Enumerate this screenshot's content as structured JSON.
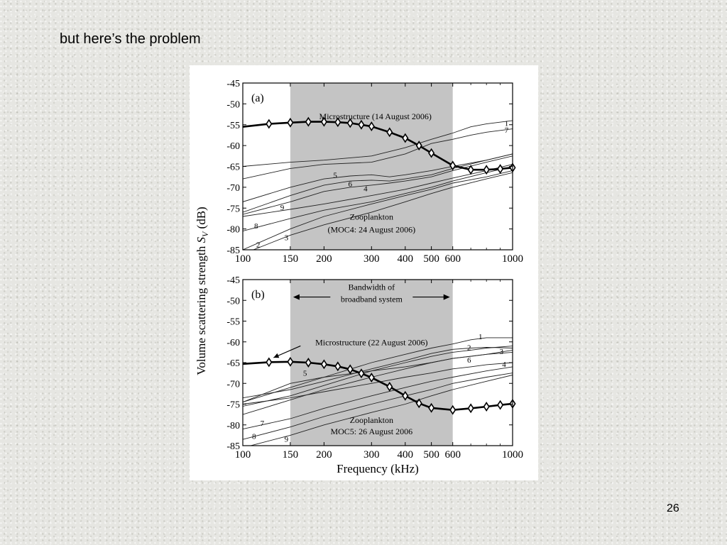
{
  "slide": {
    "title": "but here’s the problem",
    "page_number": "26"
  },
  "chart_data": [
    {
      "type": "line",
      "panel": "(a)",
      "xscale": "log",
      "xlim": [
        100,
        1000
      ],
      "ylim": [
        -85,
        -45
      ],
      "yticks": [
        -45,
        -50,
        -55,
        -60,
        -65,
        -70,
        -75,
        -80,
        -85
      ],
      "xtick_values": [
        100,
        150,
        200,
        300,
        400,
        500,
        600,
        1000
      ],
      "xtick_labels": [
        "100",
        "150",
        "200",
        "300",
        "400",
        "500",
        "600",
        "1000"
      ],
      "shaded_band": [
        150,
        600
      ],
      "annotations": [
        {
          "text": "Microstructure (14 August 2006)",
          "x": 310,
          "y": -53.7
        },
        {
          "text": "Zooplankton",
          "x": 300,
          "y": -77.8
        },
        {
          "text": "(MOC4: 24 August 2006)",
          "x": 300,
          "y": -80.8
        }
      ],
      "microstructure": {
        "x": [
          100,
          125,
          150,
          175,
          200,
          225,
          250,
          275,
          300,
          350,
          400,
          450,
          500,
          600,
          700,
          800,
          900,
          1000
        ],
        "y": [
          -55.5,
          -54.8,
          -54.5,
          -54.3,
          -54.3,
          -54.4,
          -54.6,
          -55.0,
          -55.4,
          -56.8,
          -58.2,
          -60.0,
          -61.8,
          -64.8,
          -65.8,
          -65.8,
          -65.6,
          -65.3
        ]
      },
      "zooplankton": [
        {
          "label": "1",
          "label_at": [
            950,
            -54.6
          ],
          "x": [
            100,
            150,
            200,
            300,
            400,
            500,
            600,
            700,
            800,
            1000
          ],
          "y": [
            -65,
            -64,
            -63.5,
            -62.5,
            -60.5,
            -58.5,
            -57,
            -55.5,
            -54.8,
            -54
          ]
        },
        {
          "label": "7",
          "label_at": [
            950,
            -56.2
          ],
          "x": [
            100,
            150,
            200,
            300,
            400,
            500,
            600,
            700,
            800,
            1000
          ],
          "y": [
            -68,
            -65.5,
            -64.5,
            -64,
            -62,
            -59.5,
            -58.5,
            -57.5,
            -56.8,
            -56
          ]
        },
        {
          "label": "5",
          "label_at": [
            220,
            -67
          ],
          "x": [
            100,
            150,
            200,
            250,
            300,
            350,
            400,
            500,
            600,
            800,
            1000
          ],
          "y": [
            -73.5,
            -70,
            -68,
            -67.3,
            -67,
            -67.5,
            -67,
            -66,
            -65,
            -63.5,
            -62
          ]
        },
        {
          "label": "6",
          "label_at": [
            250,
            -69.2
          ],
          "x": [
            100,
            150,
            200,
            250,
            300,
            350,
            400,
            500,
            600,
            800,
            1000
          ],
          "y": [
            -76,
            -72,
            -69.5,
            -68.5,
            -68.3,
            -68.5,
            -68,
            -67,
            -65.5,
            -63.5,
            -62
          ]
        },
        {
          "label": "4",
          "label_at": [
            285,
            -70.3
          ],
          "x": [
            100,
            150,
            200,
            250,
            300,
            350,
            400,
            500,
            600,
            800,
            1000
          ],
          "y": [
            -76.5,
            -73.5,
            -71,
            -70,
            -69.5,
            -69,
            -68.5,
            -67.5,
            -66,
            -64,
            -62.5
          ]
        },
        {
          "label": "9",
          "label_at": [
            140,
            -74.8
          ],
          "x": [
            100,
            150,
            200,
            300,
            400,
            500,
            600,
            800,
            1000
          ],
          "y": [
            -77,
            -75.3,
            -74,
            -72,
            -70.5,
            -69,
            -67.8,
            -66,
            -64.5
          ]
        },
        {
          "label": "8",
          "label_at": [
            112,
            -79.2
          ],
          "x": [
            100,
            150,
            200,
            300,
            400,
            500,
            600,
            800,
            1000
          ],
          "y": [
            -80.5,
            -77.5,
            -75.5,
            -73.5,
            -71.5,
            -70,
            -68.5,
            -66.5,
            -65
          ]
        },
        {
          "label": "3",
          "label_at": [
            145,
            -82
          ],
          "x": [
            100,
            150,
            200,
            300,
            400,
            500,
            600,
            800,
            1000
          ],
          "y": [
            -86,
            -81.5,
            -79,
            -76,
            -73.5,
            -71.5,
            -70,
            -68,
            -66.5
          ]
        },
        {
          "label": "2",
          "label_at": [
            114,
            -83.7
          ],
          "x": [
            100,
            150,
            200,
            300,
            400,
            500,
            600,
            800,
            1000
          ],
          "y": [
            -85,
            -80,
            -77,
            -74,
            -72,
            -70.5,
            -69,
            -67.5,
            -66
          ]
        }
      ]
    },
    {
      "type": "line",
      "panel": "(b)",
      "xscale": "log",
      "xlim": [
        100,
        1000
      ],
      "ylim": [
        -85,
        -45
      ],
      "yticks": [
        -45,
        -50,
        -55,
        -60,
        -65,
        -70,
        -75,
        -80,
        -85
      ],
      "xtick_values": [
        100,
        150,
        200,
        300,
        400,
        500,
        600,
        1000
      ],
      "xtick_labels": [
        "100",
        "150",
        "200",
        "300",
        "400",
        "500",
        "600",
        "1000"
      ],
      "shaded_band": [
        150,
        600
      ],
      "bandwidth_label": [
        "Bandwidth of",
        "broadband system"
      ],
      "annotations": [
        {
          "text": "Microstructure (22 August 2006)",
          "x": 300,
          "y": -60.8,
          "arrow_to": [
            130,
            -65
          ]
        },
        {
          "text": "Zooplankton",
          "x": 300,
          "y": -79.5
        },
        {
          "text": "MOC5: 26 August 2006",
          "x": 300,
          "y": -82.3
        }
      ],
      "microstructure": {
        "x": [
          100,
          125,
          150,
          175,
          200,
          225,
          250,
          275,
          300,
          350,
          400,
          450,
          500,
          600,
          700,
          800,
          900,
          1000
        ],
        "y": [
          -65.3,
          -64.9,
          -64.8,
          -65.0,
          -65.4,
          -65.9,
          -66.6,
          -67.6,
          -68.6,
          -70.8,
          -73.0,
          -74.8,
          -75.9,
          -76.4,
          -76.0,
          -75.6,
          -75.2,
          -74.9
        ]
      },
      "zooplankton": [
        {
          "label": "1",
          "label_at": [
            760,
            -58.7
          ],
          "x": [
            100,
            150,
            200,
            300,
            400,
            500,
            600,
            700,
            800,
            1000
          ],
          "y": [
            -74.5,
            -71,
            -68.5,
            -65,
            -63,
            -61.5,
            -60.5,
            -59.5,
            -59,
            -59
          ]
        },
        {
          "label": "2",
          "label_at": [
            690,
            -61.3
          ],
          "x": [
            100,
            150,
            200,
            300,
            400,
            500,
            600,
            700,
            800,
            1000
          ],
          "y": [
            -73.5,
            -71.5,
            -69.5,
            -66.5,
            -64.5,
            -62.8,
            -61.8,
            -61.5,
            -61.3,
            -61.5
          ]
        },
        {
          "label": "3",
          "label_at": [
            910,
            -62.3
          ],
          "x": [
            100,
            150,
            200,
            300,
            400,
            500,
            600,
            700,
            800,
            1000
          ],
          "y": [
            -75.5,
            -73,
            -70.5,
            -67,
            -65,
            -63.5,
            -62.5,
            -62,
            -61.5,
            -61
          ]
        },
        {
          "label": "6",
          "label_at": [
            690,
            -64.3
          ],
          "x": [
            100,
            150,
            200,
            300,
            400,
            500,
            600,
            700,
            800,
            1000
          ],
          "y": [
            -77.5,
            -74,
            -71.5,
            -68.5,
            -66.5,
            -65,
            -64,
            -63.5,
            -63,
            -62.5
          ]
        },
        {
          "label": "4",
          "label_at": [
            930,
            -65.3
          ],
          "x": [
            100,
            150,
            200,
            300,
            400,
            500,
            600,
            700,
            800,
            1000
          ],
          "y": [
            -75,
            -73.5,
            -72,
            -70,
            -68.5,
            -67.5,
            -66.5,
            -66,
            -65.5,
            -65
          ]
        },
        {
          "label": "5",
          "label_at": [
            170,
            -67.5
          ],
          "x": [
            100,
            150,
            200,
            300,
            400,
            500,
            600,
            800,
            1000
          ],
          "y": [
            -74.5,
            -70,
            -68.5,
            -67,
            -66,
            -65,
            -64,
            -63,
            -62
          ]
        },
        {
          "label": "7",
          "label_at": [
            118,
            -79.5
          ],
          "x": [
            100,
            150,
            200,
            300,
            400,
            500,
            600,
            800,
            1000
          ],
          "y": [
            -81,
            -78.5,
            -76,
            -73,
            -71,
            -69.5,
            -68.5,
            -67,
            -66
          ]
        },
        {
          "label": "8",
          "label_at": [
            110,
            -82.7
          ],
          "x": [
            100,
            150,
            200,
            300,
            400,
            500,
            600,
            800,
            1000
          ],
          "y": [
            -83.5,
            -80.5,
            -78,
            -75,
            -73,
            -71.5,
            -70,
            -68.5,
            -67.5
          ]
        },
        {
          "label": "9",
          "label_at": [
            145,
            -83.4
          ],
          "x": [
            100,
            150,
            200,
            300,
            400,
            500,
            600,
            800,
            1000
          ],
          "y": [
            -85.5,
            -82.5,
            -80,
            -77,
            -75,
            -73,
            -71.5,
            -69.5,
            -68
          ]
        }
      ]
    }
  ],
  "axes_text": {
    "ylabel_main": "Volume scattering strength ",
    "ylabel_symbol": "S",
    "ylabel_sub": "V",
    "ylabel_unit": " (dB)",
    "xlabel": "Frequency (kHz)"
  }
}
